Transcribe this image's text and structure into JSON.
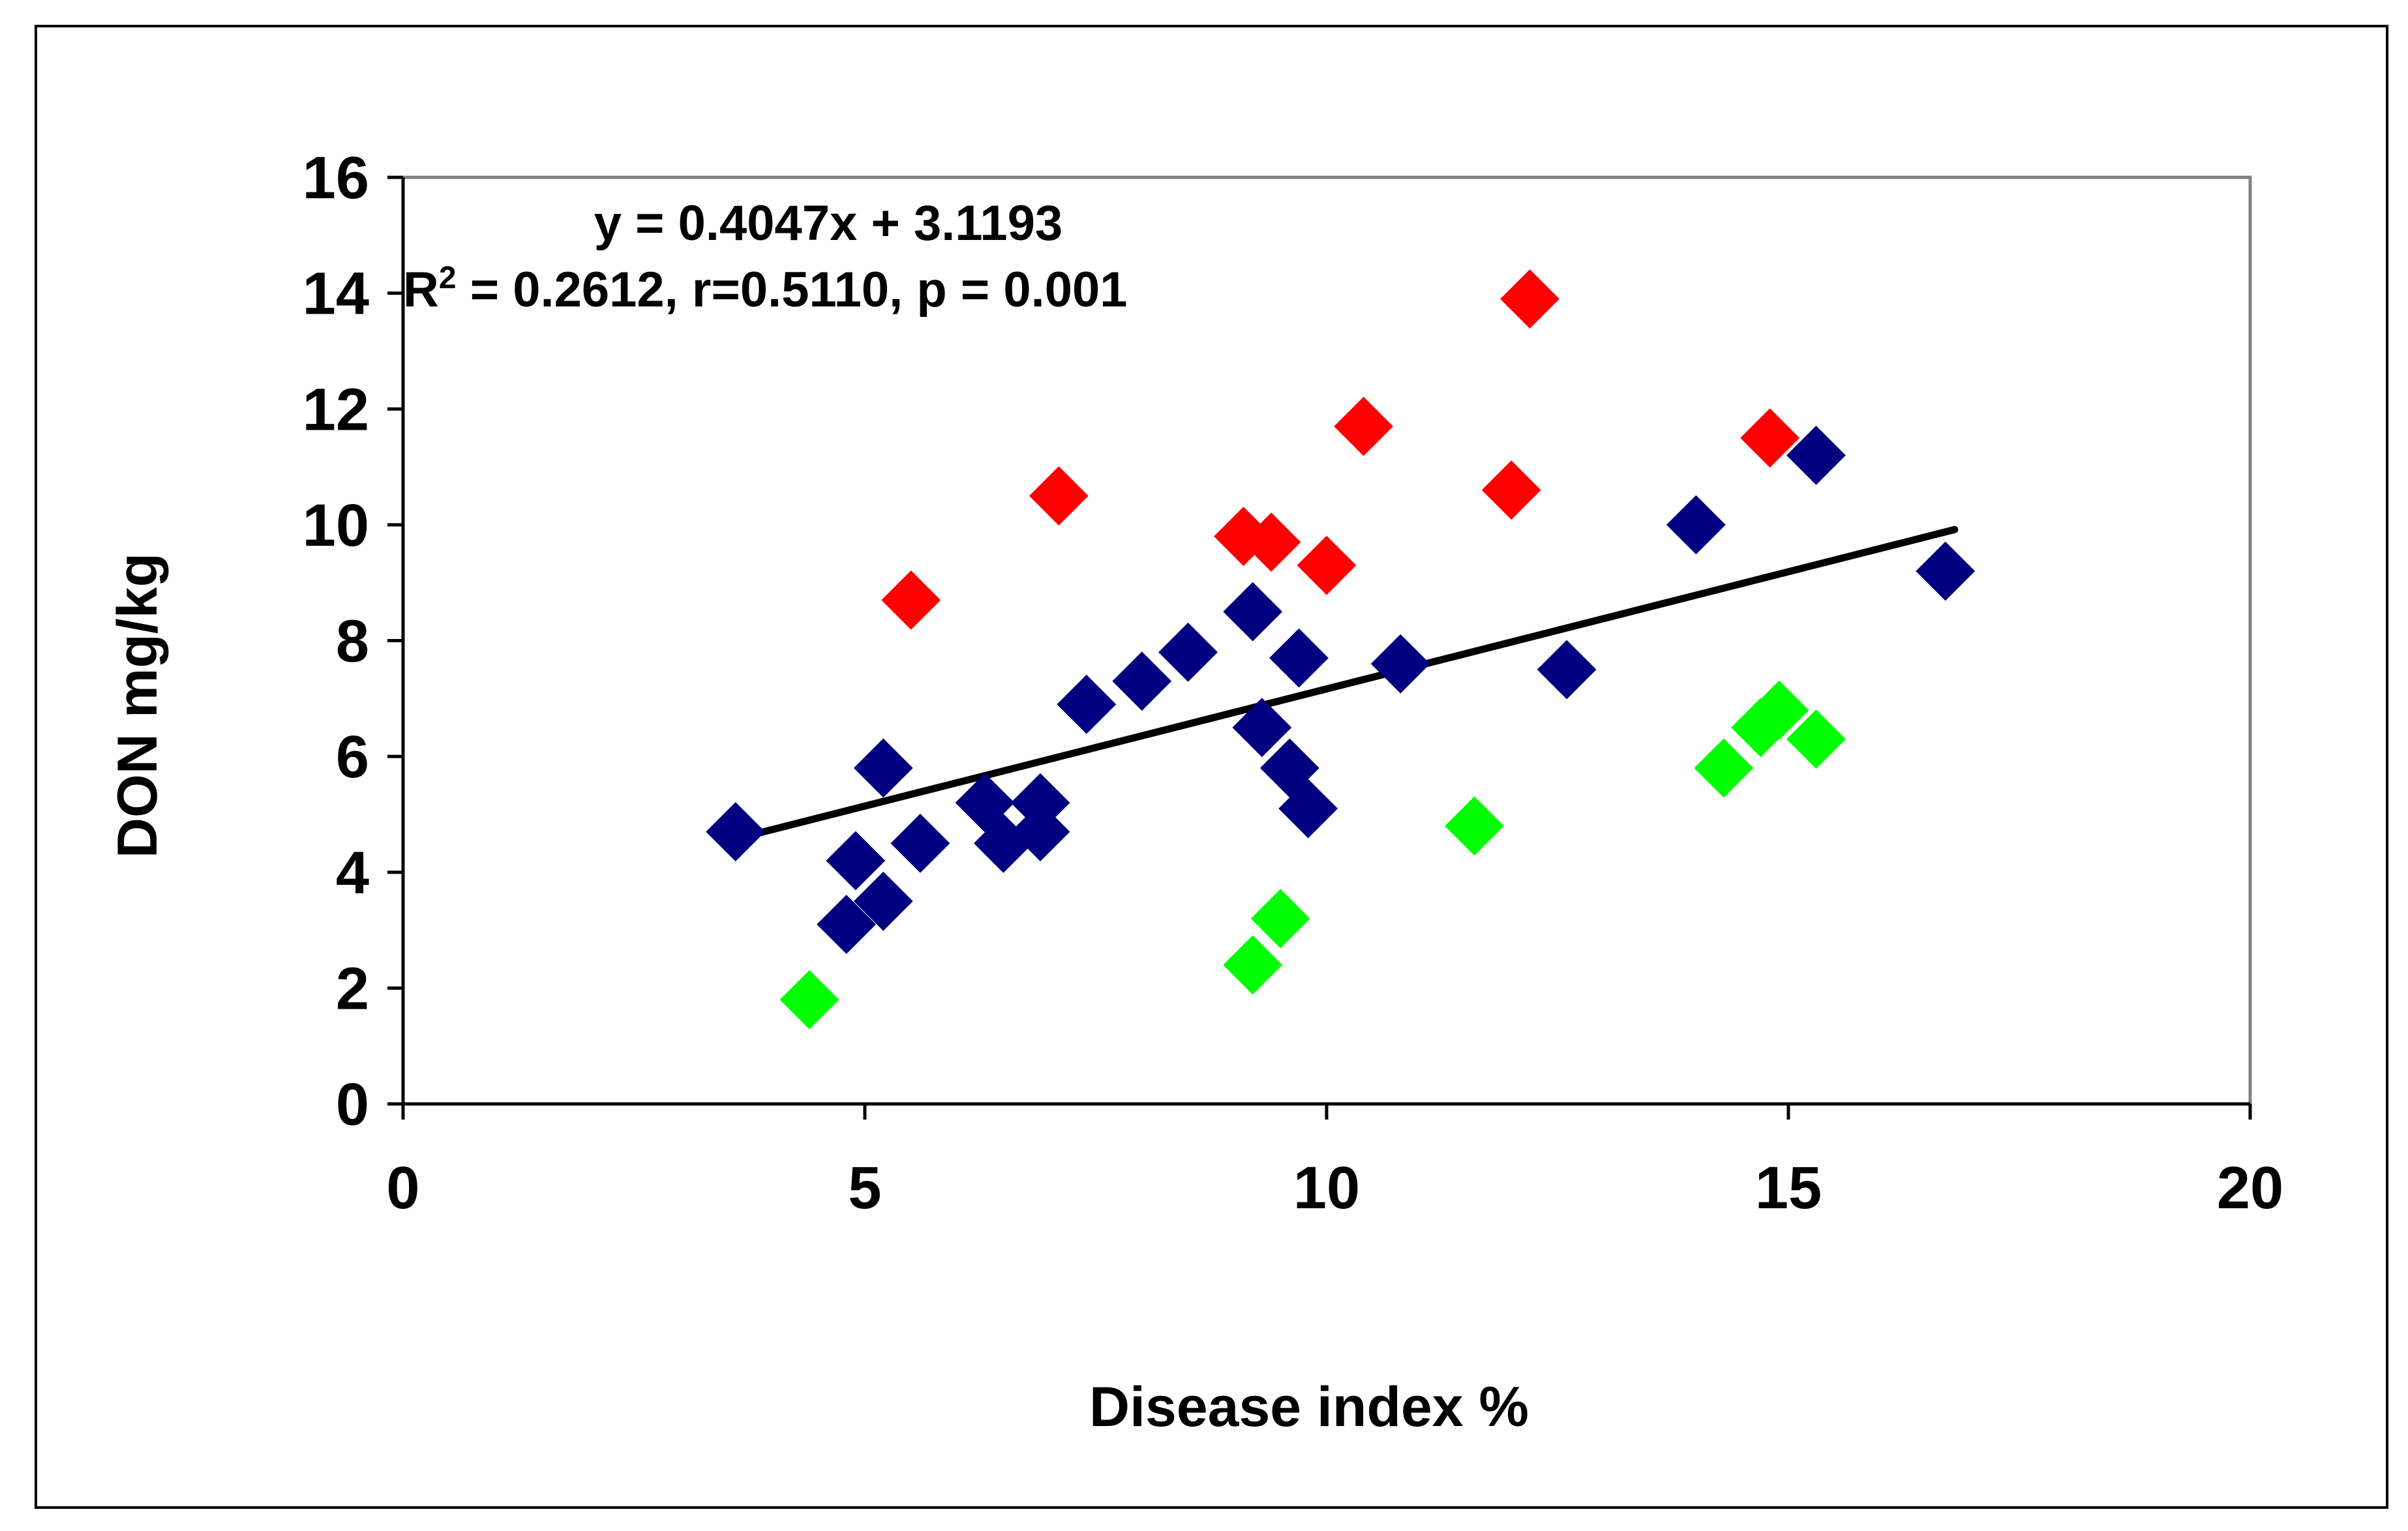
{
  "chart_data": {
    "type": "scatter",
    "title": "",
    "xlabel": "Disease index %",
    "ylabel": "DON mg/kg",
    "xlim": [
      0,
      20
    ],
    "ylim": [
      0,
      16
    ],
    "x_ticks": [
      "0",
      "5",
      "10",
      "15",
      "20"
    ],
    "y_ticks": [
      "0",
      "2",
      "4",
      "6",
      "8",
      "10",
      "12",
      "14",
      "16"
    ],
    "grid": false,
    "legend": "none",
    "annotations": {
      "equation": "y = 0.4047x + 3.1193",
      "stats_prefix": "R",
      "stats_sup": "2",
      "stats_suffix": " = 0.2612, r=0.5110, p = 0.001"
    },
    "trendline": {
      "slope": 0.4047,
      "intercept": 3.1193,
      "x_range": [
        3.6,
        16.8
      ],
      "color": "#000000"
    },
    "series": [
      {
        "name": "blue",
        "color": "#000080",
        "points": [
          [
            3.6,
            4.7
          ],
          [
            4.8,
            3.1
          ],
          [
            4.9,
            4.2
          ],
          [
            5.2,
            3.5
          ],
          [
            5.2,
            5.8
          ],
          [
            5.6,
            4.5
          ],
          [
            6.3,
            5.2
          ],
          [
            6.5,
            4.5
          ],
          [
            6.9,
            5.2
          ],
          [
            6.9,
            4.7
          ],
          [
            7.4,
            6.9
          ],
          [
            8.0,
            7.3
          ],
          [
            8.5,
            7.8
          ],
          [
            9.2,
            8.5
          ],
          [
            9.3,
            6.5
          ],
          [
            9.6,
            5.8
          ],
          [
            9.7,
            7.7
          ],
          [
            9.8,
            5.1
          ],
          [
            10.8,
            7.6
          ],
          [
            12.6,
            7.5
          ],
          [
            14.0,
            10.0
          ],
          [
            15.3,
            11.2
          ],
          [
            16.7,
            9.2
          ]
        ]
      },
      {
        "name": "red",
        "color": "#ff0000",
        "points": [
          [
            5.5,
            8.7
          ],
          [
            7.1,
            10.5
          ],
          [
            9.1,
            9.8
          ],
          [
            9.4,
            9.7
          ],
          [
            10.0,
            9.3
          ],
          [
            10.4,
            11.7
          ],
          [
            12.0,
            10.6
          ],
          [
            12.2,
            13.9
          ],
          [
            14.8,
            11.5
          ]
        ]
      },
      {
        "name": "green",
        "color": "#00ff00",
        "points": [
          [
            4.4,
            1.8
          ],
          [
            9.2,
            2.4
          ],
          [
            9.5,
            3.2
          ],
          [
            11.6,
            4.8
          ],
          [
            14.3,
            5.8
          ],
          [
            14.7,
            6.5
          ],
          [
            14.9,
            6.8
          ],
          [
            15.3,
            6.3
          ]
        ]
      }
    ]
  }
}
